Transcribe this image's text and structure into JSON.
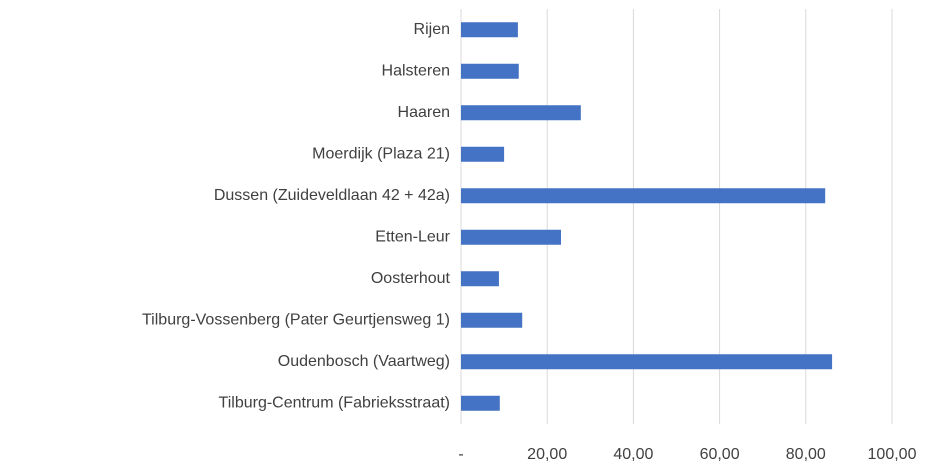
{
  "chart_data": {
    "type": "barh",
    "categories": [
      "Rijen",
      "Halsteren",
      "Haaren",
      "Moerdijk (Plaza 21)",
      "Dussen (Zuideveldlaan 42 + 42a)",
      "Etten-Leur",
      "Oosterhout",
      "Tilburg-Vossenberg (Pater Geurtjensweg 1)",
      "Oudenbosch (Vaartweg)",
      "Tilburg-Centrum (Fabrieksstraat)"
    ],
    "values": [
      13.2,
      13.4,
      27.8,
      10.0,
      84.5,
      23.2,
      8.8,
      14.2,
      86.1,
      9.0
    ],
    "color": "#4472c4",
    "xlim": [
      0,
      100
    ],
    "xticks": [
      {
        "value": 0,
        "label": "-"
      },
      {
        "value": 20,
        "label": "20,00"
      },
      {
        "value": 40,
        "label": "40,00"
      },
      {
        "value": 60,
        "label": "60,00"
      },
      {
        "value": 80,
        "label": "80,00"
      },
      {
        "value": 100,
        "label": "100,00"
      }
    ],
    "grid": true
  }
}
